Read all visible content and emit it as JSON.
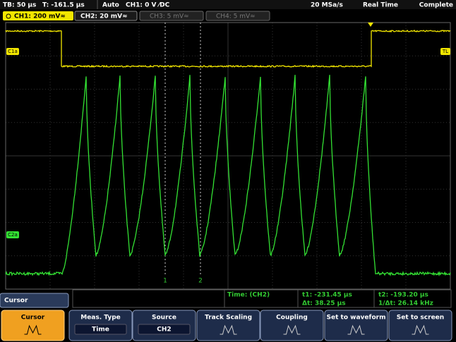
{
  "status_bar": {
    "timebase": "TB: 50 µs",
    "trigger_time": "T: -161.5 µs",
    "mode": "Auto",
    "trigger": "CH1: 0 V ⁄DC",
    "sample_rate": "20 MSa/s",
    "acquisition": "Real Time",
    "state": "Complete"
  },
  "channels": [
    "CH1: 200 mV≈",
    "CH2: 20 mV≈",
    "CH3: 5 mV≈",
    "CH4: 5 mV≈"
  ],
  "markers": {
    "ch1": "C1a",
    "ch2": "C2a",
    "trigger": "TL",
    "cursor1": "1",
    "cursor2": "2"
  },
  "measurement": {
    "type": "Time:  (CH2)",
    "t1": "t1: -231.45 µs",
    "t2": "t2: -193.20 µs",
    "dt": "Δt: 38.25 µs",
    "inv_dt": "1/Δt: 26.14 kHz"
  },
  "menu": {
    "title": "Cursor",
    "buttons": [
      {
        "label": "Cursor"
      },
      {
        "label": "Meas. Type",
        "value": "Time"
      },
      {
        "label": "Source",
        "value": "CH2"
      },
      {
        "label": "Track Scaling"
      },
      {
        "label": "Coupling"
      },
      {
        "label": "Set to waveform"
      },
      {
        "label": "Set to screen"
      }
    ]
  }
}
